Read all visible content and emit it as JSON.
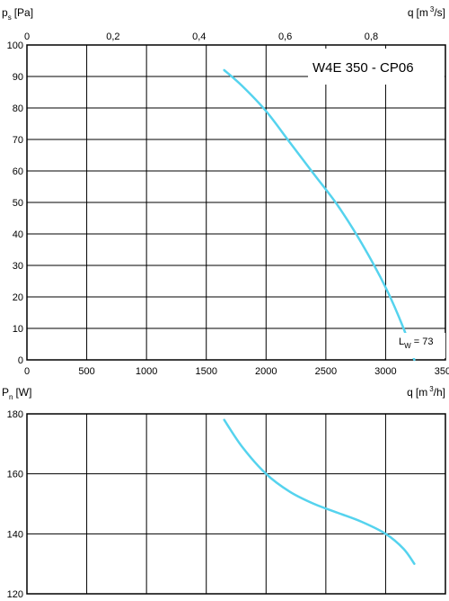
{
  "chart_data": [
    {
      "type": "line",
      "name": "pressure-chart",
      "model_label": "W4E 350 - CP06",
      "y_axis": {
        "symbol": "p",
        "subscript": "s",
        "unit": "[Pa]",
        "range": [
          0,
          100
        ],
        "ticks": [
          0,
          10,
          20,
          30,
          40,
          50,
          60,
          70,
          80,
          90,
          100
        ]
      },
      "x_axis_bottom": {
        "symbol": "q",
        "unit": "[m",
        "unit_sup": "3",
        "unit_end": "/h]",
        "range": [
          0,
          3500
        ],
        "ticks": [
          0,
          500,
          1000,
          1500,
          2000,
          2500,
          3000,
          3500
        ]
      },
      "x_axis_top": {
        "symbol": "q",
        "unit": "[m",
        "unit_sup": "3",
        "unit_end": "/s]",
        "range": [
          0,
          0.9722
        ],
        "ticks": [
          "0",
          "0,2",
          "0,4",
          "0,6",
          "0,8"
        ],
        "tick_values": [
          0,
          0.2,
          0.4,
          0.6,
          0.8
        ]
      },
      "grid": true,
      "series": [
        {
          "color": "#55d3ee",
          "x": [
            1650,
            1800,
            2000,
            2200,
            2400,
            2600,
            2800,
            3000,
            3150,
            3240
          ],
          "y": [
            92,
            87,
            79,
            69,
            59,
            49,
            37,
            23,
            10,
            0
          ]
        }
      ],
      "annotation": {
        "text": "L",
        "subscript": "W",
        "suffix": " = 73"
      }
    },
    {
      "type": "line",
      "name": "power-chart",
      "y_axis": {
        "symbol": "P",
        "subscript": "n",
        "unit": "[W]",
        "range": [
          120,
          180
        ],
        "ticks": [
          120,
          140,
          160,
          180
        ]
      },
      "x_axis_bottom": {
        "symbol": "q",
        "unit": "[m",
        "unit_sup": "3",
        "unit_end": "/h]",
        "range": [
          0,
          3500
        ]
      },
      "grid": true,
      "series": [
        {
          "color": "#55d3ee",
          "x": [
            1650,
            1800,
            2000,
            2200,
            2400,
            2600,
            2800,
            3000,
            3150,
            3240
          ],
          "y": [
            178,
            169,
            160,
            154,
            150,
            147,
            144,
            140,
            135,
            130
          ]
        }
      ]
    }
  ]
}
